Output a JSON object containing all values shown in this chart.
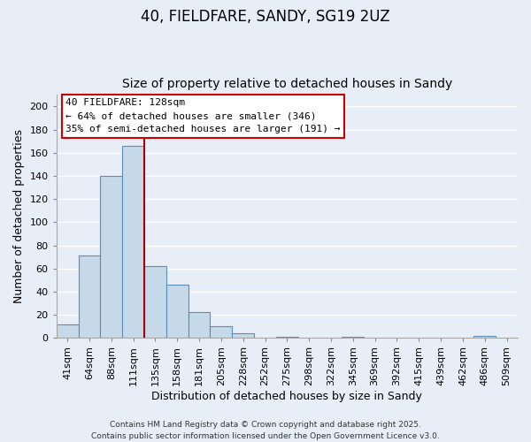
{
  "title": "40, FIELDFARE, SANDY, SG19 2UZ",
  "subtitle": "Size of property relative to detached houses in Sandy",
  "xlabel": "Distribution of detached houses by size in Sandy",
  "ylabel": "Number of detached properties",
  "categories": [
    "41sqm",
    "64sqm",
    "88sqm",
    "111sqm",
    "135sqm",
    "158sqm",
    "181sqm",
    "205sqm",
    "228sqm",
    "252sqm",
    "275sqm",
    "298sqm",
    "322sqm",
    "345sqm",
    "369sqm",
    "392sqm",
    "415sqm",
    "439sqm",
    "462sqm",
    "486sqm",
    "509sqm"
  ],
  "values": [
    12,
    71,
    140,
    166,
    62,
    46,
    22,
    10,
    4,
    0,
    1,
    0,
    0,
    1,
    0,
    0,
    0,
    0,
    0,
    2,
    0
  ],
  "bar_color": "#c5d9e8",
  "bar_edge_color": "#5b8db8",
  "vline_color": "#aa0000",
  "vline_x_index": 3.5,
  "ylim": [
    0,
    210
  ],
  "yticks": [
    0,
    20,
    40,
    60,
    80,
    100,
    120,
    140,
    160,
    180,
    200
  ],
  "annotation_line1": "40 FIELDFARE: 128sqm",
  "annotation_line2": "← 64% of detached houses are smaller (346)",
  "annotation_line3": "35% of semi-detached houses are larger (191) →",
  "footer1": "Contains HM Land Registry data © Crown copyright and database right 2025.",
  "footer2": "Contains public sector information licensed under the Open Government Licence v3.0.",
  "bg_color": "#e8eef8",
  "grid_color": "#ffffff",
  "title_fontsize": 12,
  "subtitle_fontsize": 10,
  "axis_label_fontsize": 9,
  "tick_fontsize": 8,
  "footer_fontsize": 6.5
}
